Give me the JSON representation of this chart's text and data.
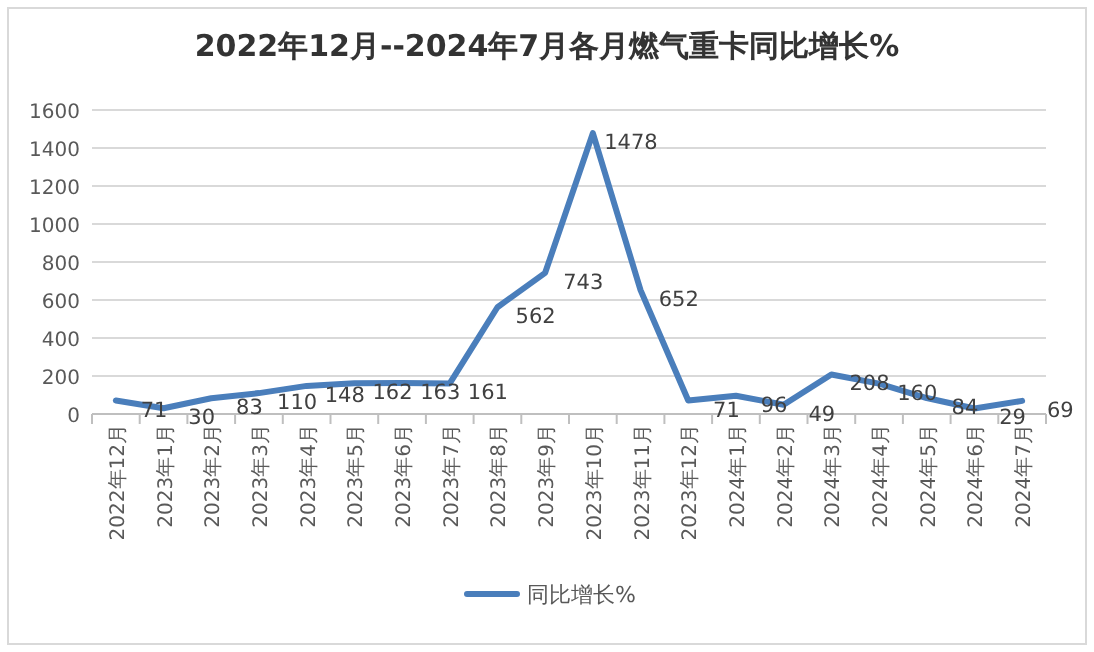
{
  "chart_data": {
    "type": "line",
    "title": "2022年12月--2024年7月各月燃气重卡同比增长%",
    "categories": [
      "2022年12月",
      "2023年1月",
      "2023年2月",
      "2023年3月",
      "2023年4月",
      "2023年5月",
      "2023年6月",
      "2023年7月",
      "2023年8月",
      "2023年9月",
      "2023年10月",
      "2023年11月",
      "2023年12月",
      "2024年1月",
      "2024年2月",
      "2024年3月",
      "2024年4月",
      "2024年5月",
      "2024年6月",
      "2024年7月"
    ],
    "series": [
      {
        "name": "同比增长%",
        "color": "#4a7ebb",
        "values": [
          71,
          30,
          83,
          110,
          148,
          162,
          163,
          161,
          562,
          743,
          1478,
          652,
          71,
          96,
          49,
          208,
          160,
          84,
          29,
          69
        ]
      }
    ],
    "ylim": [
      0,
      1600
    ],
    "yticks": [
      0,
      200,
      400,
      600,
      800,
      1000,
      1200,
      1400,
      1600
    ],
    "grid": "y",
    "legend": "bottom",
    "data_labels": true,
    "marker": "none",
    "line_style": "solid"
  }
}
